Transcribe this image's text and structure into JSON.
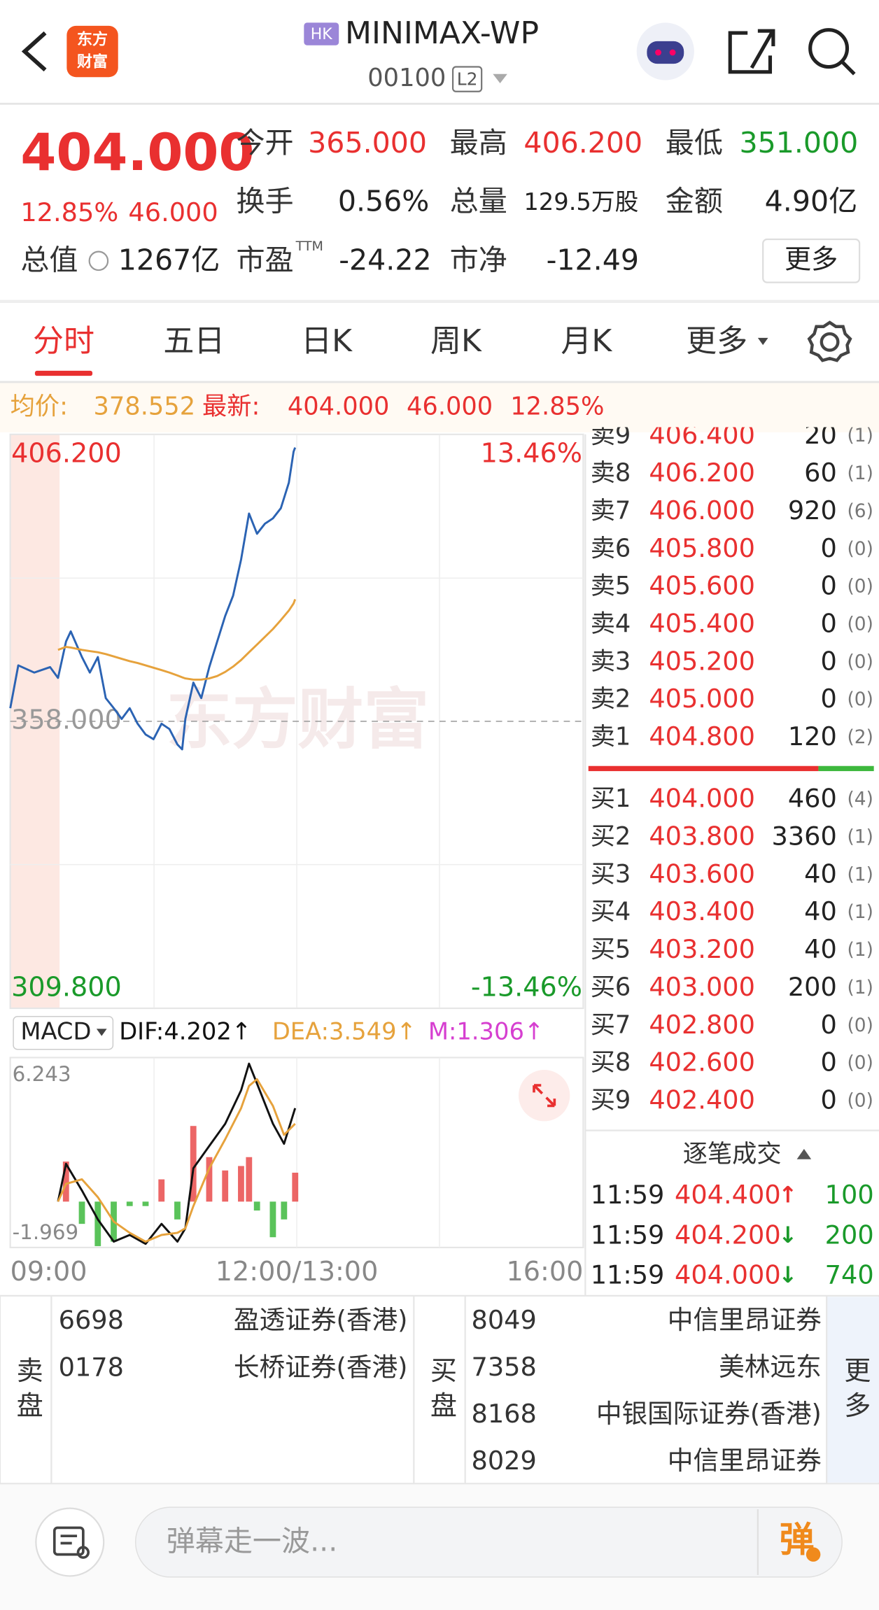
{
  "header": {
    "logo": [
      "东方",
      "财富"
    ],
    "market_badge": "HK",
    "name": "MINIMAX-WP",
    "code": "00100",
    "level_badge": "L2"
  },
  "quote": {
    "price": "404.000",
    "change_pct": "12.85%",
    "change": "46.000",
    "fields": [
      {
        "label": "今开",
        "value": "365.000"
      },
      {
        "label": "最高",
        "value": "406.200"
      },
      {
        "label": "最低",
        "value": "351.000"
      },
      {
        "label": "换手",
        "value": "0.56%"
      },
      {
        "label": "总量",
        "value": "129.5万股"
      },
      {
        "label": "金额",
        "value": "4.90亿"
      },
      {
        "label": "总值",
        "value": "1267亿"
      },
      {
        "label": "市盈",
        "sup": "TTM",
        "value": "-24.22"
      },
      {
        "label": "市净",
        "value": "-12.49"
      }
    ],
    "more": "更多"
  },
  "tabs": [
    "分时",
    "五日",
    "日K",
    "周K",
    "月K",
    "更多"
  ],
  "active_tab": 0,
  "info_bar": {
    "avg_label": "均价:",
    "avg": "378.552",
    "latest_label": "最新:",
    "latest": "404.000",
    "change": "46.000",
    "change_pct": "12.85%"
  },
  "watermark": "东方财富",
  "chart_data": [
    {
      "type": "line",
      "x": [
        "09:00",
        "09:05",
        "09:15",
        "09:25",
        "09:30",
        "09:35",
        "09:38",
        "09:45",
        "09:50",
        "09:55",
        "10:00",
        "10:05",
        "10:10",
        "10:15",
        "10:20",
        "10:25",
        "10:30",
        "10:35",
        "10:40",
        "10:45",
        "10:48",
        "10:50",
        "10:55",
        "11:00",
        "11:05",
        "11:10",
        "11:15",
        "11:20",
        "11:25",
        "11:30",
        "11:35",
        "11:40",
        "11:45",
        "11:50",
        "11:55",
        "11:58",
        "11:59"
      ],
      "series": [
        {
          "color": "#2b63b3",
          "values": [
            360.2,
            367.4,
            366.2,
            367.1,
            365.3,
            371.4,
            373.1,
            368.8,
            366.2,
            368.8,
            361.9,
            360.2,
            358.4,
            360.2,
            357.6,
            355.8,
            355.0,
            357.6,
            356.7,
            354.1,
            353.3,
            358.4,
            364.5,
            361.9,
            367.1,
            371.4,
            375.7,
            379.1,
            385.2,
            392.9,
            389.5,
            391.2,
            392.1,
            393.8,
            398.1,
            403.3,
            404.0
          ]
        },
        {
          "color": "#e6a23c",
          "values": [
            null,
            null,
            null,
            null,
            370.0,
            370.5,
            370.4,
            370.0,
            369.8,
            369.6,
            369.3,
            368.9,
            368.5,
            368.1,
            367.8,
            367.4,
            367.0,
            366.6,
            366.2,
            365.7,
            365.4,
            365.2,
            365.0,
            365.0,
            365.2,
            365.6,
            366.3,
            367.2,
            368.3,
            369.6,
            370.9,
            372.2,
            373.5,
            375.0,
            376.6,
            377.8,
            378.5
          ]
        }
      ],
      "ylim": [
        309.8,
        406.2
      ],
      "yticks": [
        {
          "value": 406.2,
          "label": "406.200"
        },
        {
          "value": 358,
          "label": "358.000"
        },
        {
          "value": 309.8,
          "label": "309.800"
        }
      ],
      "y2lim": [
        -13.46,
        13.46
      ],
      "y2ticks": [
        {
          "value": 13.46,
          "label": "13.46%"
        },
        {
          "value": -13.46,
          "label": "-13.46%"
        }
      ],
      "xticks": [
        "09:00",
        "12:00/13:00",
        "16:00"
      ]
    },
    {
      "type": "macd",
      "title": "MACD",
      "x": [
        "09:30",
        "09:35",
        "09:45",
        "09:55",
        "10:05",
        "10:15",
        "10:25",
        "10:35",
        "10:45",
        "10:50",
        "10:55",
        "11:05",
        "11:15",
        "11:25",
        "11:30",
        "11:35",
        "11:45",
        "11:52",
        "11:59"
      ],
      "series": [
        {
          "legend": "DIF:4.202↑",
          "color": "#111111",
          "values": [
            0.0,
            1.7,
            0.5,
            -0.8,
            -1.8,
            -1.5,
            -1.9,
            -1.0,
            -1.8,
            -1.2,
            1.5,
            2.5,
            3.5,
            5.0,
            6.2,
            5.3,
            3.5,
            2.6,
            4.2
          ]
        },
        {
          "legend": "DEA:3.549↑",
          "color": "#e6a23c",
          "values": [
            0,
            0.8,
            1.0,
            0.2,
            -0.9,
            -1.4,
            -1.8,
            -1.5,
            -1.4,
            -1.2,
            -0.2,
            1.5,
            2.8,
            4.2,
            5.2,
            5.5,
            4.3,
            3.0,
            3.5
          ]
        },
        {
          "legend": "M:1.306↑",
          "color": "#d63fd0",
          "bar_color": "#e94b4b",
          "negative_color": "#3db83d",
          "values": [
            0,
            1.8,
            -1.0,
            -2.0,
            -1.8,
            -0.2,
            -0.2,
            1.0,
            -0.8,
            0,
            3.4,
            2.0,
            1.4,
            1.6,
            2.0,
            -0.4,
            -1.6,
            -0.8,
            1.3
          ]
        }
      ],
      "ylim": [
        -1.969,
        6.243
      ],
      "yticks": [
        6.243,
        -1.969
      ]
    }
  ],
  "order_book": {
    "asks": [
      {
        "level": "卖9",
        "price": "406.400",
        "volume": "20",
        "orders": "(1)"
      },
      {
        "level": "卖8",
        "price": "406.200",
        "volume": "60",
        "orders": "(1)"
      },
      {
        "level": "卖7",
        "price": "406.000",
        "volume": "920",
        "orders": "(6)"
      },
      {
        "level": "卖6",
        "price": "405.800",
        "volume": "0",
        "orders": "(0)"
      },
      {
        "level": "卖5",
        "price": "405.600",
        "volume": "0",
        "orders": "(0)"
      },
      {
        "level": "卖4",
        "price": "405.400",
        "volume": "0",
        "orders": "(0)"
      },
      {
        "level": "卖3",
        "price": "405.200",
        "volume": "0",
        "orders": "(0)"
      },
      {
        "level": "卖2",
        "price": "405.000",
        "volume": "0",
        "orders": "(0)"
      },
      {
        "level": "卖1",
        "price": "404.800",
        "volume": "120",
        "orders": "(2)"
      }
    ],
    "bids": [
      {
        "level": "买1",
        "price": "404.000",
        "volume": "460",
        "orders": "(4)"
      },
      {
        "level": "买2",
        "price": "403.800",
        "volume": "3360",
        "orders": "(1)"
      },
      {
        "level": "买3",
        "price": "403.600",
        "volume": "40",
        "orders": "(1)"
      },
      {
        "level": "买4",
        "price": "403.400",
        "volume": "40",
        "orders": "(1)"
      },
      {
        "level": "买5",
        "price": "403.200",
        "volume": "40",
        "orders": "(1)"
      },
      {
        "level": "买6",
        "price": "403.000",
        "volume": "200",
        "orders": "(1)"
      },
      {
        "level": "买7",
        "price": "402.800",
        "volume": "0",
        "orders": "(0)"
      },
      {
        "level": "买8",
        "price": "402.600",
        "volume": "0",
        "orders": "(0)"
      },
      {
        "level": "买9",
        "price": "402.400",
        "volume": "0",
        "orders": "(0)"
      }
    ]
  },
  "trades": {
    "title": "逐笔成交",
    "rows": [
      {
        "time": "11:59",
        "price": "404.400",
        "dir": "↑",
        "volume": "100"
      },
      {
        "time": "11:59",
        "price": "404.200",
        "dir": "↓",
        "volume": "200"
      },
      {
        "time": "11:59",
        "price": "404.000",
        "dir": "↓",
        "volume": "740"
      }
    ]
  },
  "brokers": {
    "sell_label": "卖盘",
    "sell": [
      {
        "code": "6698",
        "name": "盈透证券(香港)"
      },
      {
        "code": "0178",
        "name": "长桥证券(香港)"
      }
    ],
    "buy_label": "买盘",
    "buy": [
      {
        "code": "8049",
        "name": "中信里昂证券"
      },
      {
        "code": "7358",
        "name": "美林远东"
      },
      {
        "code": "8168",
        "name": "中银国际证券(香港)"
      },
      {
        "code": "8029",
        "name": "中信里昂证券"
      }
    ],
    "more": "更多"
  },
  "footer": {
    "placeholder": "弹幕走一波...",
    "button": "弹"
  }
}
